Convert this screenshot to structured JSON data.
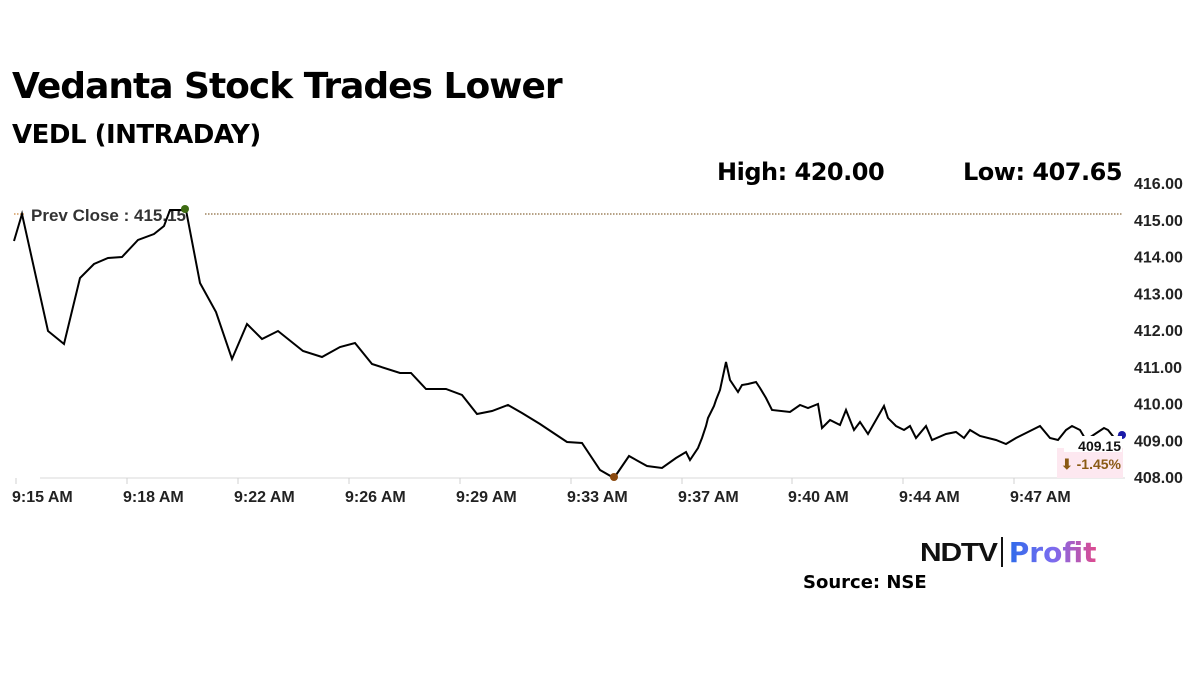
{
  "header": {
    "title": "Vedanta Stock Trades Lower",
    "subtitle": "VEDL (INTRADAY)",
    "high_label": "High: 420.00",
    "low_label": "Low: 407.65"
  },
  "annotations": {
    "prev_close_label": "Prev Close : 415.15",
    "last_price": "409.15",
    "change": "⬇ -1.45%"
  },
  "footer": {
    "logo_ndtv": "NDTV",
    "logo_profit": "Profit",
    "source": "Source: NSE"
  },
  "colors": {
    "line": "#000000",
    "prev_close_line": "#8b6a3e",
    "high_marker": "#3d6b12",
    "low_marker": "#8b4a0f",
    "last_marker": "#1a1aa8",
    "change_text": "#8a5a14"
  },
  "chart_data": {
    "type": "line",
    "title": "Vedanta Stock Trades Lower",
    "subtitle": "VEDL (INTRADAY)",
    "xlabel": "",
    "ylabel": "",
    "ylim": [
      408.0,
      416.0
    ],
    "y_ticks": [
      "416.00",
      "415.00",
      "414.00",
      "413.00",
      "412.00",
      "411.00",
      "410.00",
      "409.00",
      "408.00"
    ],
    "x_ticks": [
      "9:15 AM",
      "9:18 AM",
      "9:22 AM",
      "9:26 AM",
      "9:29 AM",
      "9:33 AM",
      "9:37 AM",
      "9:40 AM",
      "9:44 AM",
      "9:47 AM"
    ],
    "y_axis_position": "right",
    "grid": false,
    "legend": null,
    "reference_lines": [
      {
        "label": "Prev Close : 415.15",
        "value": 415.15,
        "style": "dotted"
      }
    ],
    "stats": {
      "high": 420.0,
      "low": 407.65,
      "last": 409.15,
      "change_pct": -1.45
    },
    "series": [
      {
        "name": "VEDL",
        "x": [
          "9:15",
          "9:15",
          "9:16",
          "9:16",
          "9:17",
          "9:17",
          "9:17",
          "9:18",
          "9:18",
          "9:18",
          "9:19",
          "9:19",
          "9:19",
          "9:20",
          "9:20",
          "9:21",
          "9:21",
          "9:22",
          "9:22",
          "9:23",
          "9:24",
          "9:25",
          "9:25",
          "9:26",
          "9:27",
          "9:27",
          "9:28",
          "9:28",
          "9:29",
          "9:29",
          "9:30",
          "9:31",
          "9:31",
          "9:32",
          "9:32",
          "9:33",
          "9:33",
          "9:34",
          "9:35",
          "9:35",
          "9:36",
          "9:36",
          "9:37",
          "9:37",
          "9:37",
          "9:38",
          "9:38",
          "9:38",
          "9:39",
          "9:39",
          "9:40",
          "9:41",
          "9:42",
          "9:43",
          "9:44",
          "9:45",
          "9:46",
          "9:47",
          "9:48",
          "9:48",
          "9:49"
        ],
        "values": [
          414.4,
          415.1,
          413.7,
          411.9,
          411.6,
          413.4,
          413.8,
          413.95,
          414.0,
          414.45,
          414.6,
          415.0,
          415.2,
          413.3,
          412.5,
          411.2,
          412.15,
          411.75,
          411.95,
          411.4,
          411.25,
          411.7,
          411.75,
          410.85,
          410.8,
          410.4,
          410.4,
          410.25,
          409.7,
          409.8,
          409.95,
          409.55,
          409.15,
          408.95,
          408.9,
          408.1,
          408.0,
          408.55,
          408.3,
          408.2,
          408.8,
          408.75,
          409.6,
          409.9,
          410.5,
          410.95,
          411.15,
          410.3,
          410.8,
          410.7,
          409.85,
          409.8,
          409.6,
          409.5,
          409.7,
          409.0,
          409.25,
          408.9,
          409.4,
          409.2,
          409.15
        ]
      }
    ]
  }
}
